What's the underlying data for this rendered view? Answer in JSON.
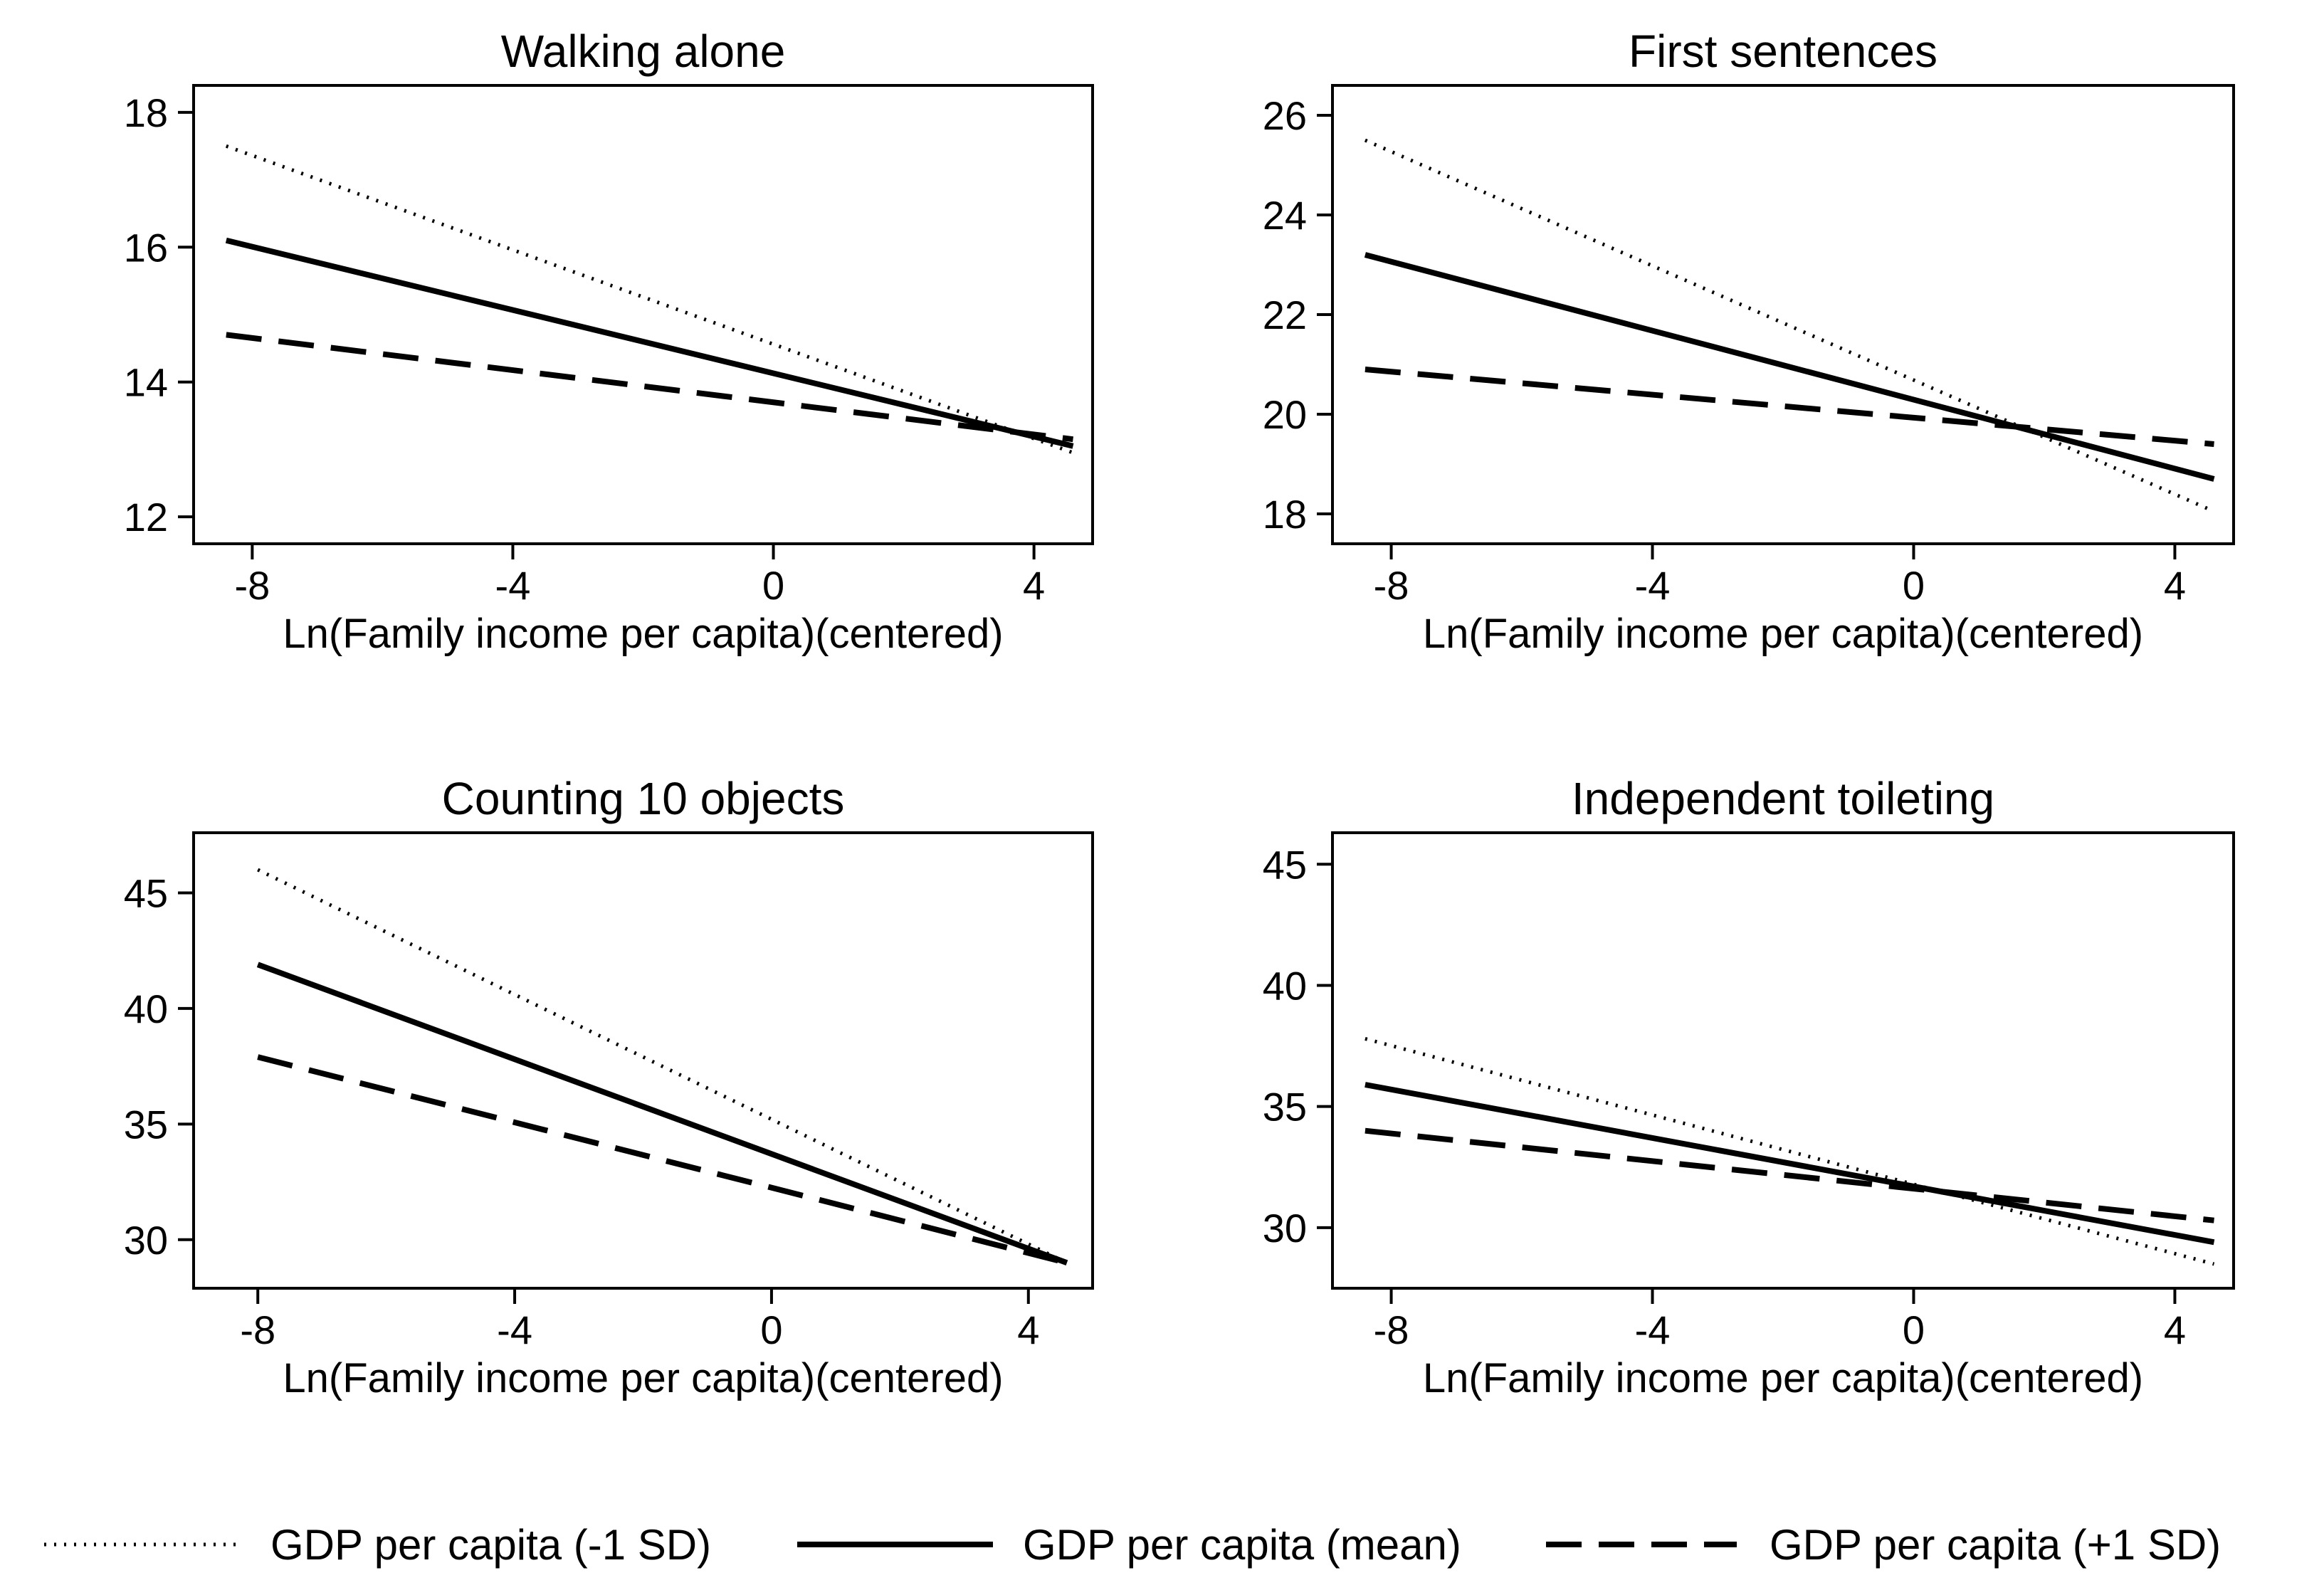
{
  "chart_data": [
    {
      "type": "line",
      "title": "Walking alone",
      "xlabel": "Ln(Family income per capita)(centered)",
      "ylabel": "",
      "xlim": [
        -8.9,
        4.9
      ],
      "ylim": [
        11.6,
        18.4
      ],
      "xticks": [
        -8,
        -4,
        0,
        4
      ],
      "yticks": [
        12,
        14,
        16,
        18
      ],
      "grid": false,
      "series": [
        {
          "name": "GDP per capita (-1 SD)",
          "style": "dotted",
          "x": [
            -8.4,
            4.6
          ],
          "y": [
            17.5,
            12.95
          ]
        },
        {
          "name": "GDP per capita (mean)",
          "style": "solid",
          "x": [
            -8.4,
            4.6
          ],
          "y": [
            16.1,
            13.05
          ]
        },
        {
          "name": "GDP per capita (+1 SD)",
          "style": "dashed",
          "x": [
            -8.4,
            4.6
          ],
          "y": [
            14.7,
            13.15
          ]
        }
      ]
    },
    {
      "type": "line",
      "title": "First sentences",
      "xlabel": "Ln(Family income per capita)(centered)",
      "ylabel": "",
      "xlim": [
        -8.9,
        4.9
      ],
      "ylim": [
        17.4,
        26.6
      ],
      "xticks": [
        -8,
        -4,
        0,
        4
      ],
      "yticks": [
        18,
        20,
        22,
        24,
        26
      ],
      "grid": false,
      "series": [
        {
          "name": "GDP per capita (-1 SD)",
          "style": "dotted",
          "x": [
            -8.4,
            4.6
          ],
          "y": [
            25.5,
            18.05
          ]
        },
        {
          "name": "GDP per capita (mean)",
          "style": "solid",
          "x": [
            -8.4,
            4.6
          ],
          "y": [
            23.2,
            18.7
          ]
        },
        {
          "name": "GDP per capita (+1 SD)",
          "style": "dashed",
          "x": [
            -8.4,
            4.6
          ],
          "y": [
            20.9,
            19.4
          ]
        }
      ]
    },
    {
      "type": "line",
      "title": "Counting 10 objects",
      "xlabel": "Ln(Family income per capita)(centered)",
      "ylabel": "",
      "xlim": [
        -9.0,
        5.0
      ],
      "ylim": [
        27.9,
        47.6
      ],
      "xticks": [
        -8,
        -4,
        0,
        4
      ],
      "yticks": [
        30,
        35,
        40,
        45
      ],
      "grid": false,
      "series": [
        {
          "name": "GDP per capita (-1 SD)",
          "style": "dotted",
          "x": [
            -8.0,
            4.6
          ],
          "y": [
            46.0,
            29.0
          ]
        },
        {
          "name": "GDP per capita (mean)",
          "style": "solid",
          "x": [
            -8.0,
            4.6
          ],
          "y": [
            41.9,
            29.0
          ]
        },
        {
          "name": "GDP per capita (+1 SD)",
          "style": "dashed",
          "x": [
            -8.0,
            4.6
          ],
          "y": [
            37.9,
            29.0
          ]
        }
      ]
    },
    {
      "type": "line",
      "title": "Independent toileting",
      "xlabel": "Ln(Family income per capita)(centered)",
      "ylabel": "",
      "xlim": [
        -8.9,
        4.9
      ],
      "ylim": [
        27.5,
        46.3
      ],
      "xticks": [
        -8,
        -4,
        0,
        4
      ],
      "yticks": [
        30,
        35,
        40,
        45
      ],
      "grid": false,
      "series": [
        {
          "name": "GDP per capita (-1 SD)",
          "style": "dotted",
          "x": [
            -8.4,
            4.6
          ],
          "y": [
            37.8,
            28.5
          ]
        },
        {
          "name": "GDP per capita (mean)",
          "style": "solid",
          "x": [
            -8.4,
            4.6
          ],
          "y": [
            35.9,
            29.4
          ]
        },
        {
          "name": "GDP per capita (+1 SD)",
          "style": "dashed",
          "x": [
            -8.4,
            4.6
          ],
          "y": [
            34.0,
            30.3
          ]
        }
      ]
    }
  ],
  "legend": {
    "placement": "bottom",
    "items": [
      {
        "label": "GDP per capita (-1 SD)",
        "style": "dotted"
      },
      {
        "label": "GDP per capita (mean)",
        "style": "solid"
      },
      {
        "label": "GDP per capita (+1 SD)",
        "style": "dashed"
      }
    ]
  },
  "colors": {
    "line": "#000000",
    "background": "#ffffff"
  }
}
